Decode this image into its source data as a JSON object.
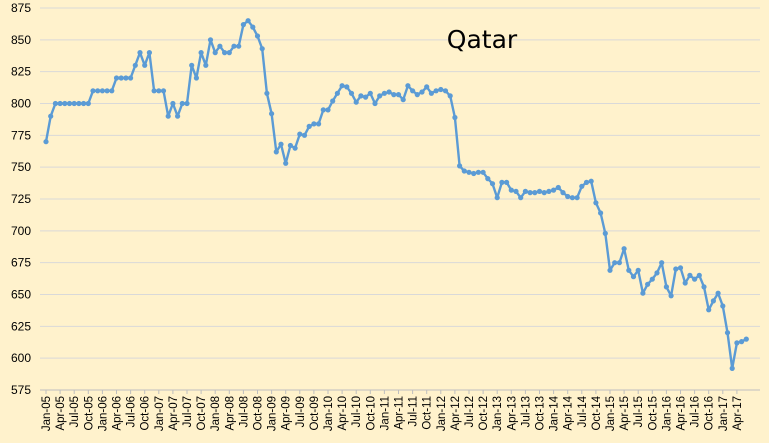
{
  "chart_data": {
    "type": "line",
    "title": "Qatar",
    "xlabel": "",
    "ylabel": "",
    "ylim": [
      575,
      875
    ],
    "yticks": [
      575,
      600,
      625,
      650,
      675,
      700,
      725,
      750,
      775,
      800,
      825,
      850,
      875
    ],
    "grid": "horizontal",
    "legend": "none",
    "colors": {
      "series": "#5b9bd5",
      "background": "#fff2cc",
      "grid": "#d9d9d9"
    },
    "x_tick_labels": [
      "Jan-05",
      "Apr-05",
      "Jul-05",
      "Oct-05",
      "Jan-06",
      "Apr-06",
      "Jul-06",
      "Oct-06",
      "Jan-07",
      "Apr-07",
      "Jul-07",
      "Oct-07",
      "Jan-08",
      "Apr-08",
      "Jul-08",
      "Oct-08",
      "Jan-09",
      "Apr-09",
      "Jul-09",
      "Oct-09",
      "Jan-10",
      "Apr-10",
      "Jul-10",
      "Oct-10",
      "Jan-11",
      "Apr-11",
      "Jul-11",
      "Oct-11",
      "Jan-12",
      "Apr-12",
      "Jul-12",
      "Oct-12",
      "Jan-13",
      "Apr-13",
      "Jul-13",
      "Oct-13",
      "Jan-14",
      "Apr-14",
      "Jul-14",
      "Oct-14",
      "Jan-15",
      "Apr-15",
      "Jul-15",
      "Oct-15",
      "Jan-16",
      "Apr-16",
      "Jul-16",
      "Oct-16",
      "Jan-17",
      "Apr-17"
    ],
    "series": [
      {
        "values": [
          770,
          790,
          800,
          800,
          800,
          800,
          800,
          800,
          800,
          800,
          810,
          810,
          810,
          810,
          810,
          820,
          820,
          820,
          820,
          830,
          840,
          830,
          840,
          810,
          810,
          810,
          790,
          800,
          790,
          800,
          800,
          830,
          820,
          840,
          830,
          850,
          840,
          845,
          840,
          840,
          845,
          845,
          862,
          865,
          860,
          853,
          843,
          808,
          792,
          762,
          768,
          753,
          767,
          765,
          776,
          775,
          782,
          784,
          784,
          795,
          795,
          802,
          808,
          814,
          813,
          808,
          801,
          806,
          805,
          808,
          800,
          806,
          808,
          809,
          807,
          807,
          803,
          814,
          810,
          807,
          809,
          813,
          808,
          810,
          811,
          810,
          806,
          789,
          751,
          747,
          746,
          745,
          746,
          746,
          741,
          737,
          726,
          738,
          738,
          732,
          731,
          726,
          731,
          730,
          730,
          731,
          730,
          731,
          732,
          734,
          730,
          727,
          726,
          726,
          735,
          738,
          739,
          722,
          714,
          698,
          669,
          675,
          675,
          686,
          669,
          664,
          669,
          651,
          658,
          662,
          667,
          675,
          656,
          649,
          670,
          671,
          659,
          665,
          662,
          665,
          656,
          638,
          645,
          651,
          641,
          620,
          592,
          612,
          613,
          615
        ]
      }
    ]
  }
}
